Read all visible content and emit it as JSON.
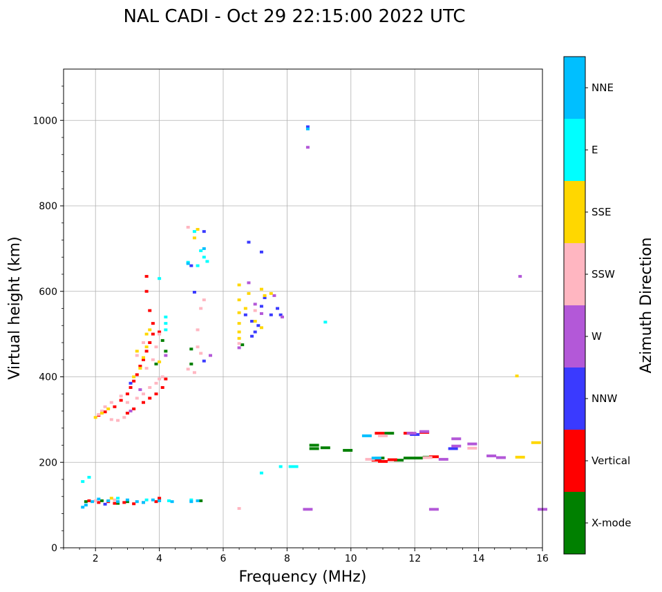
{
  "chart_data": {
    "type": "scatter",
    "title": "NAL CADI - Oct 29 22:15:00 2022 UTC",
    "xlabel": "Frequency (MHz)",
    "ylabel": "Virtual height (km)",
    "xlim": [
      1,
      16
    ],
    "ylim": [
      0,
      1120
    ],
    "xticks": [
      2,
      4,
      6,
      8,
      10,
      12,
      14,
      16
    ],
    "yticks": [
      0,
      200,
      400,
      600,
      800,
      1000
    ],
    "grid": true,
    "colorbar": {
      "label": "Azimuth Direction",
      "categories": [
        {
          "name": "X-mode",
          "color": "#008000"
        },
        {
          "name": "Vertical",
          "color": "#ff0000"
        },
        {
          "name": "NNW",
          "color": "#3a3aff"
        },
        {
          "name": "W",
          "color": "#b358d8"
        },
        {
          "name": "SSW",
          "color": "#ffb6c1"
        },
        {
          "name": "SSE",
          "color": "#ffd700"
        },
        {
          "name": "E",
          "color": "#00ffff"
        },
        {
          "name": "NNE",
          "color": "#00bfff"
        }
      ]
    },
    "series": [
      {
        "name": "X-mode",
        "points": [
          [
            1.7,
            108
          ],
          [
            2.2,
            110
          ],
          [
            4.1,
            485
          ],
          [
            3.9,
            430
          ],
          [
            5.0,
            465
          ],
          [
            5.3,
            110
          ],
          [
            6.6,
            475
          ],
          [
            8.85,
            240
          ],
          [
            8.85,
            232
          ],
          [
            9.2,
            234
          ],
          [
            9.9,
            228
          ],
          [
            10.8,
            207
          ],
          [
            10.9,
            210
          ],
          [
            11.2,
            268
          ],
          [
            11.5,
            205
          ],
          [
            11.8,
            210
          ],
          [
            12.1,
            210
          ],
          [
            12.4,
            212
          ],
          [
            4.2,
            460
          ],
          [
            5.0,
            430
          ],
          [
            3.0,
            108
          ],
          [
            2.7,
            104
          ]
        ]
      },
      {
        "name": "Vertical",
        "points": [
          [
            1.8,
            110
          ],
          [
            2.1,
            106
          ],
          [
            2.4,
            108
          ],
          [
            2.6,
            104
          ],
          [
            2.9,
            106
          ],
          [
            3.2,
            103
          ],
          [
            3.5,
            106
          ],
          [
            3.9,
            108
          ],
          [
            4.0,
            116
          ],
          [
            2.1,
            310
          ],
          [
            2.3,
            318
          ],
          [
            2.6,
            330
          ],
          [
            2.8,
            345
          ],
          [
            3.0,
            360
          ],
          [
            3.1,
            375
          ],
          [
            3.2,
            390
          ],
          [
            3.3,
            405
          ],
          [
            3.4,
            425
          ],
          [
            3.5,
            440
          ],
          [
            3.6,
            460
          ],
          [
            3.7,
            480
          ],
          [
            3.8,
            500
          ],
          [
            3.5,
            340
          ],
          [
            3.7,
            350
          ],
          [
            3.9,
            360
          ],
          [
            4.1,
            375
          ],
          [
            4.2,
            395
          ],
          [
            3.0,
            315
          ],
          [
            3.2,
            325
          ],
          [
            3.7,
            555
          ],
          [
            3.6,
            600
          ],
          [
            3.6,
            635
          ],
          [
            3.8,
            525
          ],
          [
            4.0,
            505
          ],
          [
            10.8,
            205
          ],
          [
            11.0,
            202
          ],
          [
            11.3,
            206
          ],
          [
            11.8,
            268
          ],
          [
            12.3,
            270
          ],
          [
            12.6,
            213
          ],
          [
            10.9,
            268
          ]
        ]
      },
      {
        "name": "NNW",
        "points": [
          [
            2.3,
            102
          ],
          [
            5.4,
            740
          ],
          [
            6.9,
            530
          ],
          [
            7.0,
            505
          ],
          [
            7.2,
            565
          ],
          [
            7.3,
            585
          ],
          [
            7.5,
            545
          ],
          [
            7.7,
            560
          ],
          [
            6.9,
            495
          ],
          [
            7.1,
            520
          ],
          [
            7.8,
            545
          ],
          [
            6.8,
            715
          ],
          [
            7.2,
            692
          ],
          [
            5.0,
            660
          ],
          [
            5.1,
            598
          ],
          [
            5.4,
            437
          ],
          [
            6.7,
            545
          ],
          [
            8.65,
            985
          ],
          [
            12.0,
            265
          ],
          [
            13.2,
            232
          ],
          [
            3.1,
            385
          ]
        ]
      },
      {
        "name": "W",
        "points": [
          [
            6.8,
            620
          ],
          [
            7.0,
            570
          ],
          [
            7.2,
            548
          ],
          [
            7.6,
            590
          ],
          [
            7.85,
            540
          ],
          [
            8.65,
            937
          ],
          [
            8.65,
            90
          ],
          [
            12.6,
            90
          ],
          [
            16.0,
            90
          ],
          [
            15.3,
            635
          ],
          [
            13.3,
            255
          ],
          [
            13.8,
            243
          ],
          [
            14.4,
            215
          ],
          [
            14.7,
            211
          ],
          [
            12.3,
            272
          ],
          [
            12.9,
            207
          ],
          [
            13.3,
            238
          ],
          [
            11.9,
            268
          ],
          [
            6.5,
            468
          ],
          [
            5.6,
            450
          ],
          [
            4.2,
            450
          ],
          [
            3.4,
            370
          ],
          [
            3.1,
            320
          ]
        ]
      },
      {
        "name": "SSW",
        "points": [
          [
            2.1,
            312
          ],
          [
            2.2,
            320
          ],
          [
            2.3,
            330
          ],
          [
            2.5,
            300
          ],
          [
            2.7,
            298
          ],
          [
            2.9,
            305
          ],
          [
            2.5,
            340
          ],
          [
            2.8,
            355
          ],
          [
            3.0,
            340
          ],
          [
            3.3,
            350
          ],
          [
            3.5,
            360
          ],
          [
            3.7,
            375
          ],
          [
            3.9,
            385
          ],
          [
            4.0,
            395
          ],
          [
            4.1,
            400
          ],
          [
            3.6,
            420
          ],
          [
            3.8,
            440
          ],
          [
            3.9,
            470
          ],
          [
            4.0,
            500
          ],
          [
            3.5,
            480
          ],
          [
            3.3,
            450
          ],
          [
            5.4,
            580
          ],
          [
            5.3,
            560
          ],
          [
            5.2,
            510
          ],
          [
            5.2,
            470
          ],
          [
            5.3,
            455
          ],
          [
            4.9,
            418
          ],
          [
            5.1,
            410
          ],
          [
            4.9,
            750
          ],
          [
            6.5,
            92
          ],
          [
            10.6,
            207
          ],
          [
            13.8,
            233
          ],
          [
            12.4,
            211
          ],
          [
            11.0,
            262
          ],
          [
            2.0,
            110
          ],
          [
            2.6,
            112
          ],
          [
            6.5,
            478
          ],
          [
            7.0,
            555
          ]
        ]
      },
      {
        "name": "SSE",
        "points": [
          [
            2.0,
            305
          ],
          [
            2.2,
            315
          ],
          [
            2.4,
            325
          ],
          [
            3.2,
            400
          ],
          [
            3.4,
            420
          ],
          [
            3.5,
            445
          ],
          [
            3.3,
            460
          ],
          [
            3.6,
            470
          ],
          [
            3.6,
            500
          ],
          [
            3.7,
            510
          ],
          [
            4.0,
            435
          ],
          [
            5.2,
            745
          ],
          [
            5.1,
            725
          ],
          [
            6.5,
            615
          ],
          [
            6.5,
            580
          ],
          [
            6.5,
            550
          ],
          [
            6.5,
            525
          ],
          [
            6.5,
            505
          ],
          [
            6.5,
            490
          ],
          [
            6.7,
            560
          ],
          [
            6.8,
            595
          ],
          [
            7.2,
            605
          ],
          [
            7.3,
            590
          ],
          [
            7.5,
            595
          ],
          [
            7.0,
            530
          ],
          [
            7.2,
            515
          ],
          [
            15.2,
            402
          ],
          [
            15.3,
            212
          ],
          [
            15.8,
            246
          ],
          [
            2.5,
            116
          ]
        ]
      },
      {
        "name": "E",
        "points": [
          [
            5.3,
            695
          ],
          [
            5.4,
            680
          ],
          [
            5.5,
            670
          ],
          [
            5.1,
            740
          ],
          [
            4.2,
            540
          ],
          [
            4.2,
            525
          ],
          [
            4.2,
            510
          ],
          [
            4.0,
            630
          ],
          [
            7.2,
            175
          ],
          [
            7.8,
            190
          ],
          [
            8.2,
            190
          ],
          [
            9.2,
            528
          ],
          [
            5.0,
            112
          ],
          [
            3.6,
            112
          ],
          [
            4.3,
            110
          ],
          [
            1.6,
            155
          ],
          [
            1.8,
            165
          ],
          [
            2.7,
            116
          ],
          [
            5.2,
            660
          ],
          [
            4.9,
            668
          ]
        ]
      },
      {
        "name": "NNE",
        "points": [
          [
            5.4,
            700
          ],
          [
            4.9,
            665
          ],
          [
            8.65,
            980
          ],
          [
            10.5,
            262
          ],
          [
            10.8,
            210
          ],
          [
            1.6,
            95
          ],
          [
            1.7,
            100
          ],
          [
            1.9,
            108
          ],
          [
            2.1,
            114
          ],
          [
            2.4,
            110
          ],
          [
            2.7,
            108
          ],
          [
            3.0,
            112
          ],
          [
            3.3,
            108
          ],
          [
            3.5,
            106
          ],
          [
            3.8,
            112
          ],
          [
            4.0,
            110
          ],
          [
            4.4,
            108
          ],
          [
            5.0,
            108
          ],
          [
            5.2,
            110
          ]
        ]
      }
    ]
  }
}
